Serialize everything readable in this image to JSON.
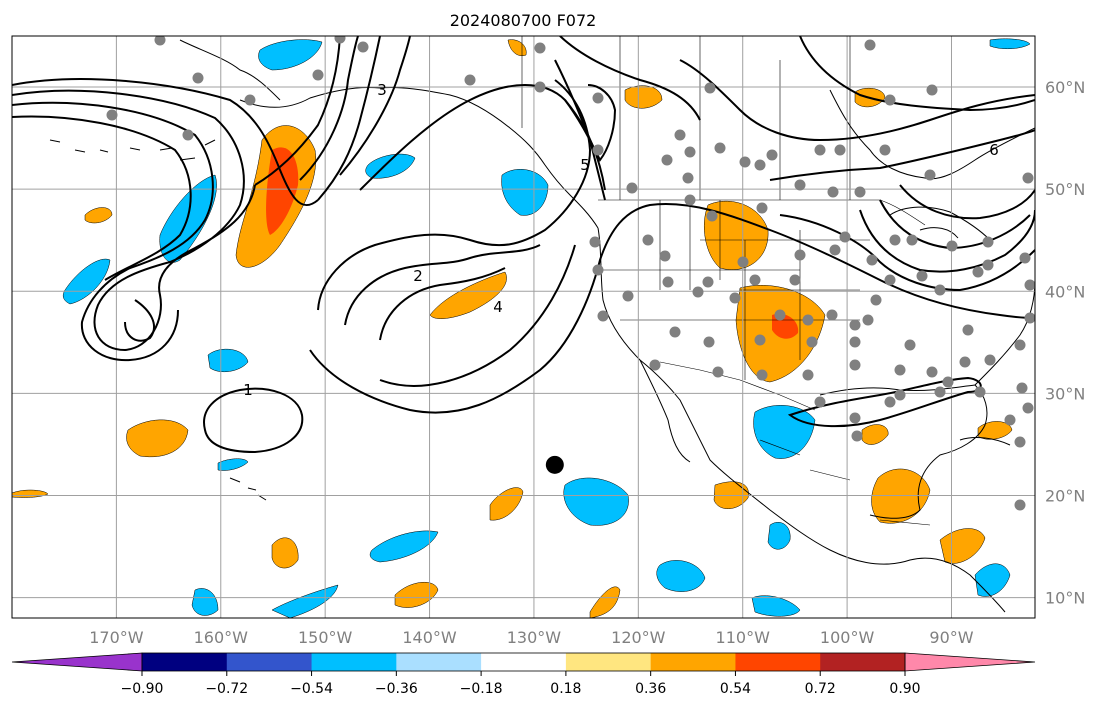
{
  "title": "2024080700 F072",
  "map": {
    "lon_range": [
      -180,
      -82
    ],
    "lat_range": [
      8,
      65
    ],
    "lon_ticks": [
      {
        "value": -170,
        "label": "170°W"
      },
      {
        "value": -160,
        "label": "160°W"
      },
      {
        "value": -150,
        "label": "150°W"
      },
      {
        "value": -140,
        "label": "140°W"
      },
      {
        "value": -130,
        "label": "130°W"
      },
      {
        "value": -120,
        "label": "120°W"
      },
      {
        "value": -110,
        "label": "110°W"
      },
      {
        "value": -100,
        "label": "100°W"
      },
      {
        "value": -90,
        "label": "90°W"
      }
    ],
    "lat_ticks": [
      {
        "value": 60,
        "label": "60°N"
      },
      {
        "value": 50,
        "label": "50°N"
      },
      {
        "value": 40,
        "label": "40°N"
      },
      {
        "value": 30,
        "label": "30°N"
      },
      {
        "value": 20,
        "label": "20°N"
      },
      {
        "value": 10,
        "label": "10°N"
      }
    ],
    "marker": {
      "lon": -128,
      "lat": 23,
      "color": "#000000"
    },
    "station_color": "#808080",
    "contour_labels": [
      "1",
      "2",
      "3",
      "4",
      "5",
      "6"
    ]
  },
  "colorbar": {
    "colors": [
      "#9933cc",
      "#000080",
      "#3355cc",
      "#00bfff",
      "#aadfff",
      "#ffffff",
      "#ffe680",
      "#ffa500",
      "#ff4500",
      "#b22222",
      "#ff88aa"
    ],
    "ticks": [
      "−0.90",
      "−0.72",
      "−0.54",
      "−0.36",
      "−0.18",
      "0.18",
      "0.36",
      "0.54",
      "0.72",
      "0.90"
    ]
  }
}
